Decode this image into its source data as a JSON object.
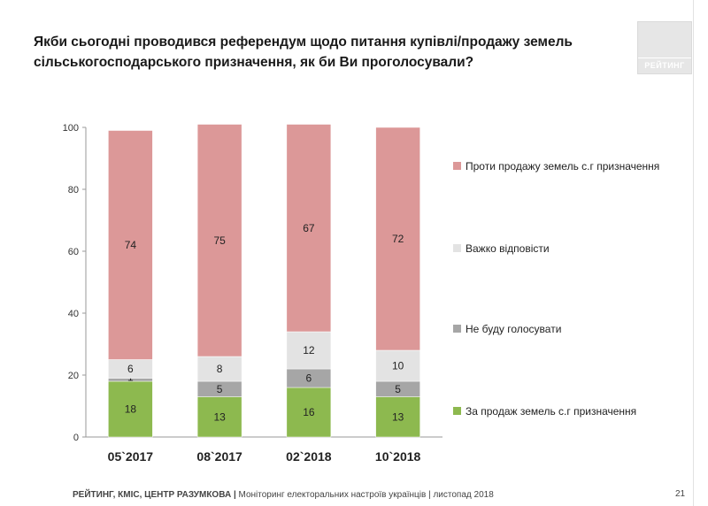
{
  "title": "Якби сьогодні проводився референдум щодо питання купівлі/продажу земель сільськогосподарського призначення, як би Ви проголосували?",
  "logo_text": "РЕЙТИНГ",
  "footer": {
    "source": "РЕЙТИНГ, КМІС, ЦЕНТР РАЗУМКОВА |",
    "description": "Моніторинг електоральних настроїв українців | листопад 2018",
    "page": "21"
  },
  "chart_data": {
    "type": "bar",
    "stacked": true,
    "categories": [
      "05`2017",
      "08`2017",
      "02`2018",
      "10`2018"
    ],
    "series": [
      {
        "name": "За продаж земель с.г призначення",
        "values": [
          18,
          13,
          16,
          13
        ],
        "color": "#8db94f"
      },
      {
        "name": "Не буду голосувати",
        "values": [
          1,
          5,
          6,
          5
        ],
        "color": "#a6a6a6"
      },
      {
        "name": "Важко відповісти",
        "values": [
          6,
          8,
          12,
          10
        ],
        "color": "#e3e3e3"
      },
      {
        "name": "Проти продажу земель с.г призначення",
        "values": [
          74,
          75,
          67,
          72
        ],
        "color": "#dc9898"
      }
    ],
    "ylim": [
      0,
      100
    ],
    "yticks": [
      0,
      20,
      40,
      60,
      80,
      100
    ],
    "legend_position": "right",
    "grid": false
  }
}
